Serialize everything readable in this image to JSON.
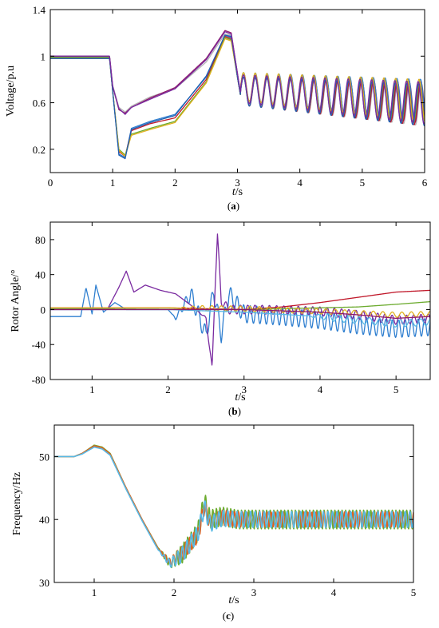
{
  "chart_data": [
    {
      "type": "line",
      "panel_label_open": "(",
      "panel_label": "a",
      "panel_label_close": ")",
      "ylabel": "Voltage/p.u",
      "xlabel_italic": "t",
      "xlabel_unit": "/s",
      "xlim": [
        0,
        6
      ],
      "ylim": [
        0,
        1.4
      ],
      "xticks": [
        0,
        1,
        2,
        3,
        4,
        5,
        6
      ],
      "yticks": [
        0.2,
        0.6,
        1,
        1.4
      ],
      "yticklabels": [
        "0.2",
        "0.6",
        "1",
        "1.4"
      ],
      "grid": false,
      "series": [
        {
          "color": "#b5b5b5",
          "values_at": [
            [
              0,
              1.0
            ],
            [
              0.95,
              1.0
            ],
            [
              1.0,
              0.75
            ],
            [
              1.1,
              0.56
            ],
            [
              1.2,
              0.52
            ],
            [
              1.3,
              0.57
            ],
            [
              1.6,
              0.65
            ],
            [
              2.0,
              0.72
            ],
            [
              2.5,
              0.95
            ],
            [
              2.8,
              1.19
            ],
            [
              2.9,
              1.18
            ],
            [
              3.0,
              0.85
            ],
            [
              3.05,
              0.68
            ]
          ]
        },
        {
          "color": "#8e1b6a",
          "values_at": [
            [
              0,
              1.0
            ],
            [
              0.95,
              1.0
            ],
            [
              1.0,
              0.74
            ],
            [
              1.1,
              0.54
            ],
            [
              1.2,
              0.51
            ],
            [
              1.3,
              0.56
            ],
            [
              1.6,
              0.64
            ],
            [
              2.0,
              0.73
            ],
            [
              2.5,
              0.98
            ],
            [
              2.8,
              1.22
            ],
            [
              2.9,
              1.2
            ],
            [
              3.0,
              0.85
            ],
            [
              3.05,
              0.68
            ]
          ]
        },
        {
          "color": "#2f7fd0",
          "values_at": [
            [
              0,
              0.98
            ],
            [
              0.95,
              0.98
            ],
            [
              1.0,
              0.7
            ],
            [
              1.1,
              0.16
            ],
            [
              1.2,
              0.13
            ],
            [
              1.3,
              0.38
            ],
            [
              1.6,
              0.44
            ],
            [
              2.0,
              0.5
            ],
            [
              2.5,
              0.82
            ],
            [
              2.8,
              1.18
            ],
            [
              2.9,
              1.16
            ],
            [
              3.0,
              0.82
            ],
            [
              3.05,
              0.66
            ]
          ]
        },
        {
          "color": "#c0182a",
          "values_at": [
            [
              0,
              0.99
            ],
            [
              0.95,
              0.99
            ],
            [
              1.0,
              0.7
            ],
            [
              1.1,
              0.18
            ],
            [
              1.2,
              0.14
            ],
            [
              1.3,
              0.36
            ],
            [
              1.6,
              0.42
            ],
            [
              2.0,
              0.47
            ],
            [
              2.5,
              0.8
            ],
            [
              2.8,
              1.17
            ],
            [
              2.9,
              1.15
            ],
            [
              3.0,
              0.82
            ],
            [
              3.05,
              0.66
            ]
          ]
        },
        {
          "color": "#6cab2f",
          "values_at": [
            [
              0,
              0.99
            ],
            [
              0.95,
              0.99
            ],
            [
              1.0,
              0.7
            ],
            [
              1.1,
              0.2
            ],
            [
              1.2,
              0.15
            ],
            [
              1.3,
              0.33
            ],
            [
              1.6,
              0.38
            ],
            [
              2.0,
              0.44
            ],
            [
              2.5,
              0.78
            ],
            [
              2.8,
              1.16
            ],
            [
              2.9,
              1.14
            ],
            [
              3.0,
              0.82
            ],
            [
              3.05,
              0.66
            ]
          ]
        },
        {
          "color": "#e0b020",
          "values_at": [
            [
              0,
              0.98
            ],
            [
              0.95,
              0.98
            ],
            [
              1.0,
              0.7
            ],
            [
              1.1,
              0.19
            ],
            [
              1.2,
              0.14
            ],
            [
              1.3,
              0.32
            ],
            [
              1.6,
              0.37
            ],
            [
              2.0,
              0.43
            ],
            [
              2.5,
              0.77
            ],
            [
              2.8,
              1.15
            ],
            [
              2.9,
              1.13
            ],
            [
              3.0,
              0.82
            ],
            [
              3.05,
              0.66
            ]
          ]
        },
        {
          "color": "#1f5fb0",
          "values_at": [
            [
              0,
              0.98
            ],
            [
              0.95,
              0.98
            ],
            [
              1.0,
              0.7
            ],
            [
              1.1,
              0.15
            ],
            [
              1.2,
              0.12
            ],
            [
              1.3,
              0.37
            ],
            [
              1.6,
              0.43
            ],
            [
              2.0,
              0.49
            ],
            [
              2.5,
              0.83
            ],
            [
              2.8,
              1.18
            ],
            [
              2.9,
              1.17
            ],
            [
              3.0,
              0.82
            ],
            [
              3.05,
              0.66
            ]
          ]
        },
        {
          "color": "#7a2aa0",
          "values_at": [
            [
              0,
              1.0
            ],
            [
              0.95,
              1.0
            ],
            [
              1.0,
              0.74
            ],
            [
              1.1,
              0.55
            ],
            [
              1.2,
              0.5
            ],
            [
              1.3,
              0.56
            ],
            [
              1.6,
              0.63
            ],
            [
              2.0,
              0.72
            ],
            [
              2.5,
              0.97
            ],
            [
              2.8,
              1.21
            ],
            [
              2.9,
              1.19
            ],
            [
              3.0,
              0.85
            ],
            [
              3.05,
              0.68
            ]
          ]
        }
      ],
      "oscillation": {
        "start": 3.05,
        "end": 6.0,
        "center_start": 0.72,
        "center_end": 0.6,
        "amp_start": 0.12,
        "amp_end": 0.18,
        "period": 0.19
      }
    },
    {
      "type": "line",
      "panel_label_open": "(",
      "panel_label": "b",
      "panel_label_close": ")",
      "ylabel": "Rotor Angle/°",
      "xlabel_italic": "t",
      "xlabel_unit": "/s",
      "xlim": [
        0.45,
        5.45
      ],
      "ylim": [
        -80,
        100
      ],
      "xticks": [
        1,
        2,
        3,
        4,
        5
      ],
      "yticks": [
        -80,
        -40,
        0,
        40,
        80
      ],
      "grid": false,
      "series": [
        {
          "color": "#2f7fd0",
          "values_at": [
            [
              0.45,
              -8
            ],
            [
              0.85,
              -8
            ],
            [
              0.92,
              25
            ],
            [
              1.0,
              -5
            ],
            [
              1.05,
              28
            ],
            [
              1.15,
              -3
            ],
            [
              1.3,
              8
            ],
            [
              1.45,
              0
            ],
            [
              2.0,
              0
            ],
            [
              2.1,
              -10
            ],
            [
              2.3,
              18
            ],
            [
              2.5,
              -30
            ],
            [
              2.6,
              22
            ],
            [
              2.7,
              -28
            ],
            [
              2.8,
              18
            ],
            [
              3.0,
              -5
            ],
            [
              3.5,
              -8
            ],
            [
              4.0,
              -12
            ],
            [
              4.5,
              -18
            ],
            [
              5.0,
              -22
            ],
            [
              5.45,
              -20
            ]
          ],
          "osc_from": 2.05,
          "osc_amp": 10
        },
        {
          "color": "#7a2aa0",
          "values_at": [
            [
              0.45,
              0
            ],
            [
              1.2,
              0
            ],
            [
              1.35,
              25
            ],
            [
              1.45,
              44
            ],
            [
              1.55,
              20
            ],
            [
              1.7,
              28
            ],
            [
              1.9,
              22
            ],
            [
              2.1,
              18
            ],
            [
              2.3,
              5
            ],
            [
              2.5,
              -10
            ],
            [
              2.58,
              -68
            ],
            [
              2.62,
              30
            ],
            [
              2.65,
              85
            ],
            [
              2.7,
              10
            ],
            [
              2.8,
              0
            ],
            [
              3.2,
              0
            ],
            [
              4.0,
              -2
            ],
            [
              4.5,
              -6
            ],
            [
              5.0,
              -12
            ],
            [
              5.45,
              -10
            ]
          ],
          "osc_from": 2.4,
          "osc_amp": 5
        },
        {
          "color": "#c0182a",
          "values_at": [
            [
              0.45,
              2
            ],
            [
              2.0,
              2
            ],
            [
              3.0,
              0
            ],
            [
              3.5,
              3
            ],
            [
              4.0,
              8
            ],
            [
              4.5,
              14
            ],
            [
              5.0,
              20
            ],
            [
              5.45,
              22
            ]
          ],
          "osc_from": 5.6,
          "osc_amp": 0
        },
        {
          "color": "#6cab2f",
          "values_at": [
            [
              0.45,
              1
            ],
            [
              3.0,
              0
            ],
            [
              4.0,
              2
            ],
            [
              4.5,
              3
            ],
            [
              5.0,
              6
            ],
            [
              5.45,
              9
            ]
          ],
          "osc_from": 5.6,
          "osc_amp": 0
        },
        {
          "color": "#e0b020",
          "values_at": [
            [
              0.45,
              2
            ],
            [
              2.0,
              2
            ],
            [
              3.0,
              1
            ],
            [
              4.0,
              -2
            ],
            [
              5.0,
              -6
            ],
            [
              5.45,
              -5
            ]
          ],
          "osc_from": 2.1,
          "osc_amp": 3
        },
        {
          "color": "#58b9e5",
          "values_at": [
            [
              0.45,
              0
            ],
            [
              2.0,
              0
            ],
            [
              3.0,
              -3
            ],
            [
              4.0,
              -8
            ],
            [
              4.5,
              -12
            ],
            [
              5.0,
              -16
            ],
            [
              5.45,
              -14
            ]
          ],
          "osc_from": 3.8,
          "osc_amp": 4
        },
        {
          "color": "#8e1b6a",
          "values_at": [
            [
              0.45,
              0
            ],
            [
              3.0,
              0
            ],
            [
              4.0,
              -3
            ],
            [
              4.5,
              -6
            ],
            [
              5.0,
              -10
            ],
            [
              5.45,
              -8
            ]
          ],
          "osc_from": 5.6,
          "osc_amp": 0
        }
      ]
    },
    {
      "type": "line",
      "panel_label_open": "(",
      "panel_label": "c",
      "panel_label_close": ")",
      "ylabel": "Frequency/Hz",
      "xlabel_italic": "t",
      "xlabel_unit": "/s",
      "xlim": [
        0.5,
        5.0
      ],
      "ylim": [
        30,
        55
      ],
      "xticks": [
        1,
        2,
        3,
        4,
        5
      ],
      "yticks": [
        30,
        40,
        50
      ],
      "grid": false,
      "series": [
        {
          "color": "#6cab2f",
          "values_at": [
            [
              0.5,
              50
            ],
            [
              0.75,
              50
            ],
            [
              0.85,
              50.5
            ],
            [
              1.0,
              51.8
            ],
            [
              1.1,
              51.5
            ],
            [
              1.2,
              50.5
            ],
            [
              1.4,
              45
            ],
            [
              1.6,
              40
            ],
            [
              1.8,
              35.5
            ],
            [
              1.95,
              33
            ],
            [
              2.1,
              34.5
            ],
            [
              2.3,
              38
            ],
            [
              2.38,
              43
            ],
            [
              2.45,
              40
            ],
            [
              2.6,
              40.5
            ],
            [
              2.8,
              40
            ],
            [
              3.0,
              40
            ],
            [
              4.0,
              40
            ],
            [
              5.0,
              40
            ]
          ],
          "osc_from": 1.8,
          "osc_amp": 1.5
        },
        {
          "color": "#e06020",
          "values_at": [
            [
              0.5,
              50
            ],
            [
              0.75,
              50
            ],
            [
              0.85,
              50.5
            ],
            [
              1.0,
              51.7
            ],
            [
              1.1,
              51.4
            ],
            [
              1.2,
              50.4
            ],
            [
              1.4,
              45
            ],
            [
              1.6,
              40
            ],
            [
              1.8,
              35.4
            ],
            [
              1.95,
              33.2
            ],
            [
              2.1,
              34.6
            ],
            [
              2.3,
              37.5
            ],
            [
              2.38,
              42
            ],
            [
              2.45,
              39.5
            ],
            [
              2.6,
              40.3
            ],
            [
              2.8,
              40
            ],
            [
              5.0,
              40
            ]
          ],
          "osc_from": 1.8,
          "osc_amp": 1.2
        },
        {
          "color": "#58b9e5",
          "values_at": [
            [
              0.5,
              50
            ],
            [
              0.75,
              50
            ],
            [
              0.85,
              50.4
            ],
            [
              1.0,
              51.5
            ],
            [
              1.1,
              51.2
            ],
            [
              1.2,
              50.2
            ],
            [
              1.4,
              44.8
            ],
            [
              1.6,
              39.8
            ],
            [
              1.8,
              35.2
            ],
            [
              1.95,
              33
            ],
            [
              2.1,
              34.4
            ],
            [
              2.3,
              37.8
            ],
            [
              2.38,
              42
            ],
            [
              2.45,
              39.3
            ],
            [
              2.6,
              40.2
            ],
            [
              2.8,
              40
            ],
            [
              5.0,
              40
            ]
          ],
          "osc_from": 1.8,
          "osc_amp": 1.3
        }
      ]
    }
  ]
}
